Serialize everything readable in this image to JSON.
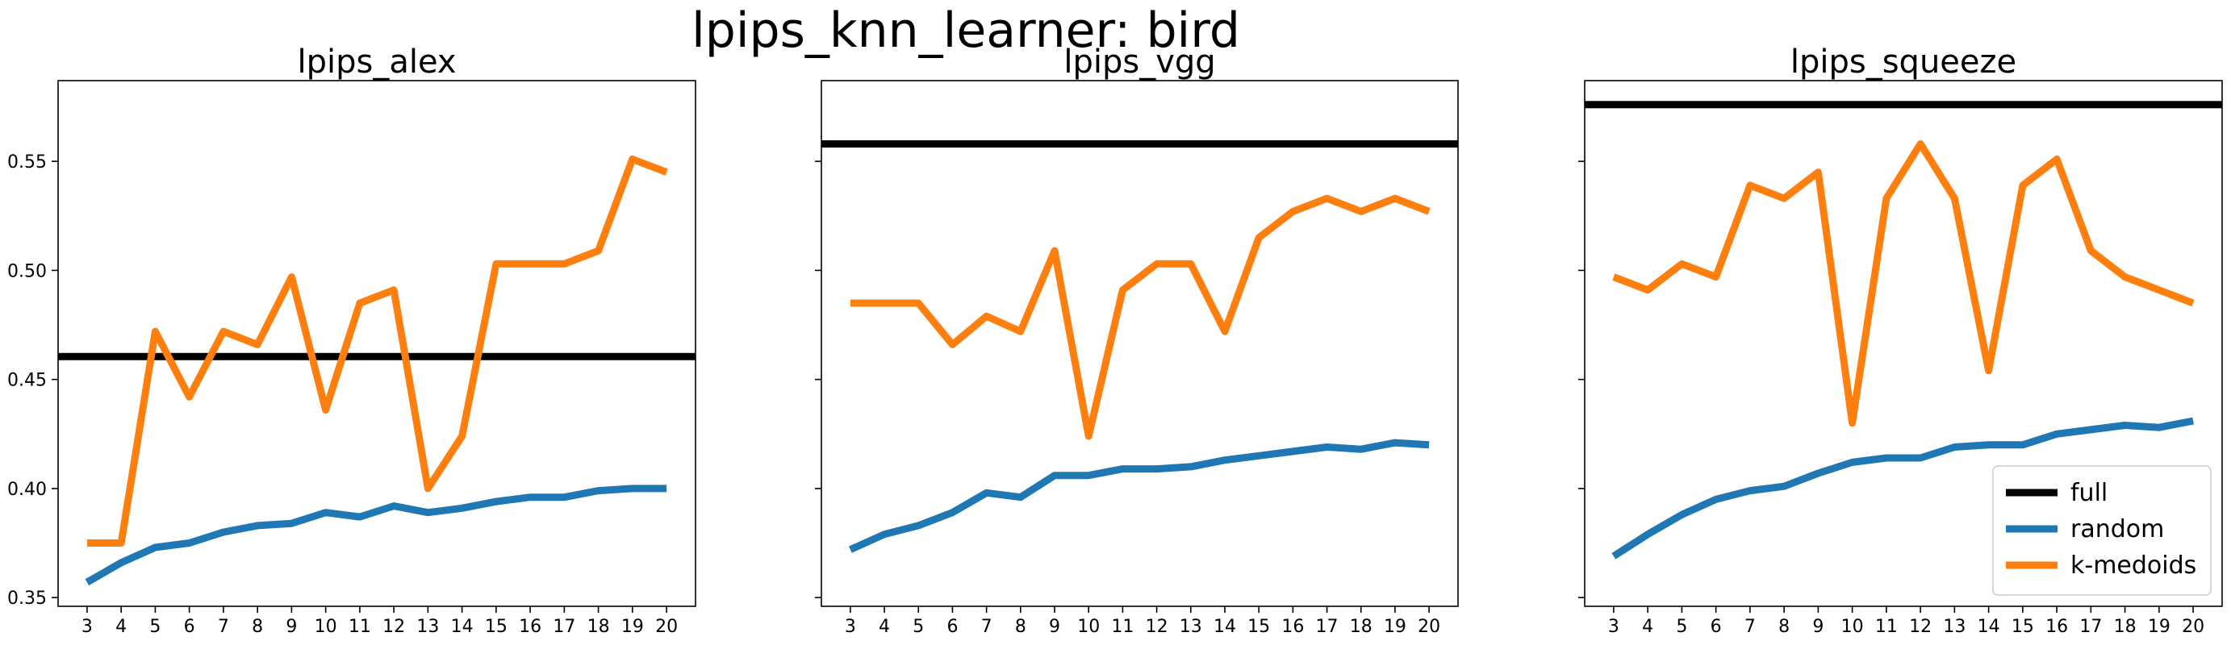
{
  "figure_title": "lpips_knn_learner: bird",
  "chart_data": [
    {
      "type": "line",
      "title": "lpips_alex",
      "xlabel": "",
      "ylabel": "",
      "x": [
        3,
        4,
        5,
        6,
        7,
        8,
        9,
        10,
        11,
        12,
        13,
        14,
        15,
        16,
        17,
        18,
        19,
        20
      ],
      "ylim": [
        0.346,
        0.587
      ],
      "yticks": [
        "0.35",
        "0.40",
        "0.45",
        "0.50",
        "0.55"
      ],
      "full": 0.4605,
      "series": [
        {
          "name": "random",
          "color": "#1f77b4",
          "values": [
            0.357,
            0.366,
            0.373,
            0.375,
            0.38,
            0.383,
            0.384,
            0.389,
            0.387,
            0.392,
            0.389,
            0.391,
            0.394,
            0.396,
            0.396,
            0.399,
            0.4,
            0.4
          ]
        },
        {
          "name": "k-medoids",
          "color": "#ff7f0e",
          "values": [
            0.375,
            0.375,
            0.472,
            0.442,
            0.472,
            0.466,
            0.497,
            0.436,
            0.485,
            0.491,
            0.4,
            0.424,
            0.503,
            0.503,
            0.503,
            0.509,
            0.551,
            0.545
          ]
        }
      ]
    },
    {
      "type": "line",
      "title": "lpips_vgg",
      "xlabel": "",
      "ylabel": "",
      "x": [
        3,
        4,
        5,
        6,
        7,
        8,
        9,
        10,
        11,
        12,
        13,
        14,
        15,
        16,
        17,
        18,
        19,
        20
      ],
      "ylim": [
        0.346,
        0.587
      ],
      "yticks": [
        "",
        "",
        "",
        "",
        ""
      ],
      "full": 0.558,
      "series": [
        {
          "name": "random",
          "color": "#1f77b4",
          "values": [
            0.372,
            0.379,
            0.383,
            0.389,
            0.398,
            0.396,
            0.406,
            0.406,
            0.409,
            0.409,
            0.41,
            0.413,
            0.415,
            0.417,
            0.419,
            0.418,
            0.421,
            0.42
          ]
        },
        {
          "name": "k-medoids",
          "color": "#ff7f0e",
          "values": [
            0.485,
            0.485,
            0.485,
            0.466,
            0.479,
            0.472,
            0.509,
            0.424,
            0.491,
            0.503,
            0.503,
            0.472,
            0.515,
            0.527,
            0.533,
            0.527,
            0.533,
            0.527
          ]
        }
      ]
    },
    {
      "type": "line",
      "title": "lpips_squeeze",
      "xlabel": "",
      "ylabel": "",
      "x": [
        3,
        4,
        5,
        6,
        7,
        8,
        9,
        10,
        11,
        12,
        13,
        14,
        15,
        16,
        17,
        18,
        19,
        20
      ],
      "ylim": [
        0.346,
        0.587
      ],
      "yticks": [
        "",
        "",
        "",
        "",
        ""
      ],
      "full": 0.576,
      "series": [
        {
          "name": "random",
          "color": "#1f77b4",
          "values": [
            0.369,
            0.379,
            0.388,
            0.395,
            0.399,
            0.401,
            0.407,
            0.412,
            0.414,
            0.414,
            0.419,
            0.42,
            0.42,
            0.425,
            0.427,
            0.429,
            0.428,
            0.431
          ]
        },
        {
          "name": "k-medoids",
          "color": "#ff7f0e",
          "values": [
            0.497,
            0.491,
            0.503,
            0.497,
            0.539,
            0.533,
            0.545,
            0.43,
            0.533,
            0.558,
            0.533,
            0.454,
            0.539,
            0.551,
            0.509,
            0.497,
            0.491,
            0.485
          ]
        }
      ]
    }
  ],
  "legend": {
    "location": "lower-right",
    "entries": [
      {
        "name": "full",
        "color": "#000000"
      },
      {
        "name": "random",
        "color": "#1f77b4"
      },
      {
        "name": "k-medoids",
        "color": "#ff7f0e"
      }
    ]
  }
}
